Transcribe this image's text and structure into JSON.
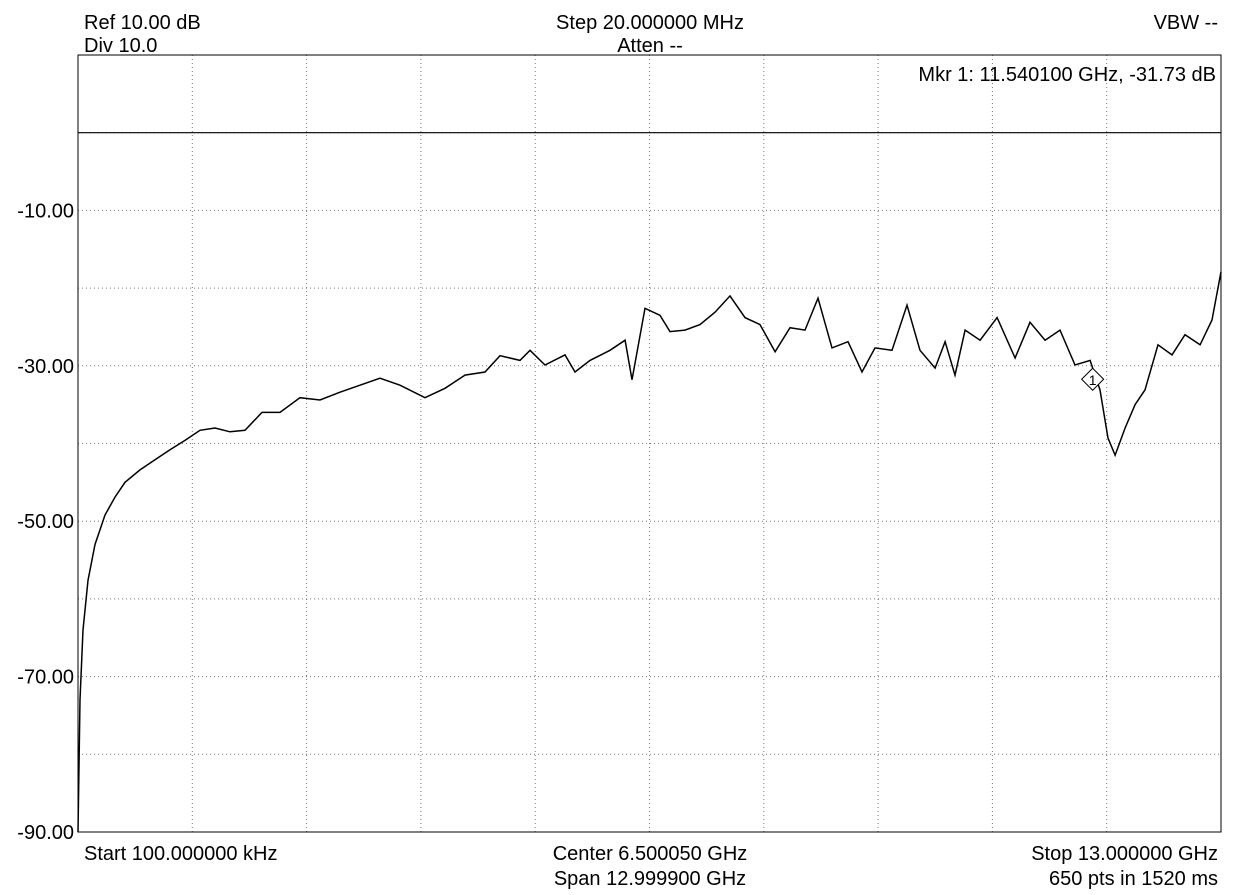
{
  "chart_data": {
    "type": "line",
    "annotations": {
      "ref": "Ref 10.00 dB",
      "div": "Div 10.0",
      "step": "Step 20.000000 MHz",
      "atten": "Atten --",
      "vbw": "VBW --",
      "marker_readout": "Mkr 1: 11.540100 GHz, -31.73 dB",
      "start": "Start 100.000000 kHz",
      "center": "Center 6.500050 GHz",
      "span": "Span 12.999900 GHz",
      "stop": "Stop 13.000000 GHz",
      "points": "650 pts in 1520 ms"
    },
    "xlim": [
      0.0001,
      13
    ],
    "ylim": [
      -90,
      10
    ],
    "yticks": [
      {
        "value": -10,
        "label": "-10.00"
      },
      {
        "value": -30,
        "label": "-30.00"
      },
      {
        "value": -50,
        "label": "-50.00"
      },
      {
        "value": -70,
        "label": "-70.00"
      },
      {
        "value": -90,
        "label": "-90.00"
      }
    ],
    "reference_line": 0,
    "grid": true,
    "series": [
      {
        "color": "#000000",
        "x": [
          0.0001,
          0.023,
          0.057,
          0.114,
          0.193,
          0.307,
          0.421,
          0.535,
          0.705,
          0.876,
          1.046,
          1.217,
          1.388,
          1.558,
          1.729,
          1.899,
          2.093,
          2.298,
          2.525,
          2.753,
          2.98,
          3.207,
          3.435,
          3.662,
          3.947,
          4.174,
          4.402,
          4.629,
          4.8,
          5.027,
          5.141,
          5.311,
          5.539,
          5.653,
          5.823,
          6.051,
          6.222,
          6.301,
          6.449,
          6.62,
          6.733,
          6.904,
          7.074,
          7.245,
          7.416,
          7.586,
          7.757,
          7.928,
          8.098,
          8.269,
          8.417,
          8.576,
          8.758,
          8.917,
          9.065,
          9.258,
          9.429,
          9.577,
          9.748,
          9.862,
          9.975,
          10.089,
          10.26,
          10.453,
          10.658,
          10.828,
          10.999,
          11.169,
          11.34,
          11.511,
          11.624,
          11.715,
          11.795,
          11.909,
          12.023,
          12.136,
          12.284,
          12.443,
          12.591,
          12.762,
          12.898,
          13.0
        ],
        "values": [
          -90,
          -73,
          -64,
          -57.6,
          -53,
          -49.2,
          -46.9,
          -45,
          -43.4,
          -42.1,
          -40.8,
          -39.6,
          -38.3,
          -38,
          -38.5,
          -38.3,
          -36,
          -36,
          -34.1,
          -34.4,
          -33.4,
          -32.5,
          -31.6,
          -32.5,
          -34.1,
          -32.9,
          -31.2,
          -30.8,
          -28.7,
          -29.3,
          -28,
          -29.9,
          -28.6,
          -30.8,
          -29.3,
          -28,
          -26.7,
          -31.8,
          -22.6,
          -23.5,
          -25.6,
          -25.4,
          -24.7,
          -23.1,
          -21,
          -23.8,
          -24.7,
          -28.2,
          -25.1,
          -25.4,
          -21.3,
          -27.7,
          -26.9,
          -30.8,
          -27.7,
          -28,
          -22.2,
          -28,
          -30.3,
          -26.9,
          -31.2,
          -25.4,
          -26.7,
          -23.8,
          -29,
          -24.4,
          -26.7,
          -25.4,
          -29.9,
          -29.3,
          -33.1,
          -39.3,
          -41.5,
          -38,
          -35,
          -33.1,
          -27.3,
          -28.6,
          -26,
          -27.3,
          -24.1,
          -17.9
        ]
      }
    ],
    "marker": {
      "x": 11.5401,
      "y": -31.73,
      "label": "1"
    }
  }
}
